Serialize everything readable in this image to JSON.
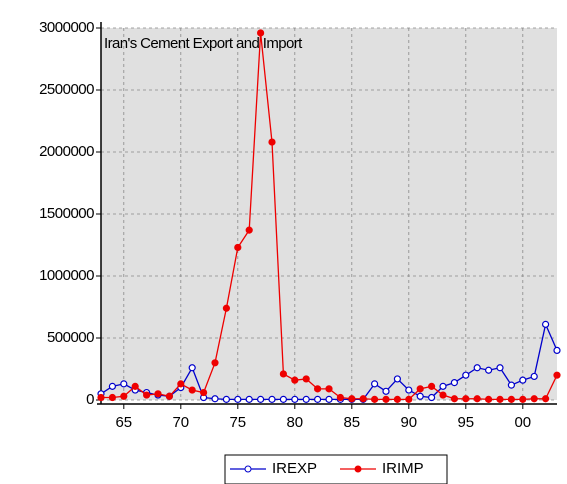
{
  "chart_data": {
    "type": "line",
    "title": "Iran's Cement Export and Import",
    "x": [
      1963,
      1964,
      1965,
      1966,
      1967,
      1968,
      1969,
      1970,
      1971,
      1972,
      1973,
      1974,
      1975,
      1976,
      1977,
      1978,
      1979,
      1980,
      1981,
      1982,
      1983,
      1984,
      1985,
      1986,
      1987,
      1988,
      1989,
      1990,
      1991,
      1992,
      1993,
      1994,
      1995,
      1996,
      1997,
      1998,
      1999,
      2000,
      2001,
      2002,
      2003
    ],
    "series": [
      {
        "name": "IREXP",
        "color": "#0000cc",
        "marker": "hollow",
        "values": [
          50000,
          110000,
          130000,
          80000,
          60000,
          40000,
          30000,
          100000,
          260000,
          20000,
          10000,
          5000,
          5000,
          5000,
          5000,
          5000,
          5000,
          5000,
          5000,
          5000,
          5000,
          5000,
          5000,
          5000,
          130000,
          70000,
          170000,
          80000,
          30000,
          20000,
          110000,
          140000,
          200000,
          260000,
          240000,
          260000,
          120000,
          160000,
          190000,
          610000,
          400000
        ]
      },
      {
        "name": "IRIMP",
        "color": "#ee0000",
        "marker": "filled",
        "values": [
          20000,
          20000,
          30000,
          110000,
          40000,
          50000,
          30000,
          130000,
          80000,
          60000,
          300000,
          740000,
          1230000,
          1370000,
          2960000,
          2080000,
          210000,
          160000,
          170000,
          90000,
          90000,
          20000,
          10000,
          10000,
          5000,
          5000,
          5000,
          5000,
          90000,
          110000,
          40000,
          10000,
          10000,
          10000,
          5000,
          5000,
          5000,
          5000,
          10000,
          10000,
          200000
        ]
      }
    ],
    "xlim": [
      1963,
      2003
    ],
    "xticks": [
      {
        "value": 1965,
        "label": "65"
      },
      {
        "value": 1970,
        "label": "70"
      },
      {
        "value": 1975,
        "label": "75"
      },
      {
        "value": 1980,
        "label": "80"
      },
      {
        "value": 1985,
        "label": "85"
      },
      {
        "value": 1990,
        "label": "90"
      },
      {
        "value": 1995,
        "label": "95"
      },
      {
        "value": 2000,
        "label": "00"
      }
    ],
    "ylim": [
      0,
      3000000
    ],
    "yticks": [
      0,
      500000,
      1000000,
      1500000,
      2000000,
      2500000,
      3000000
    ],
    "grid": true,
    "legend": "bottom"
  }
}
